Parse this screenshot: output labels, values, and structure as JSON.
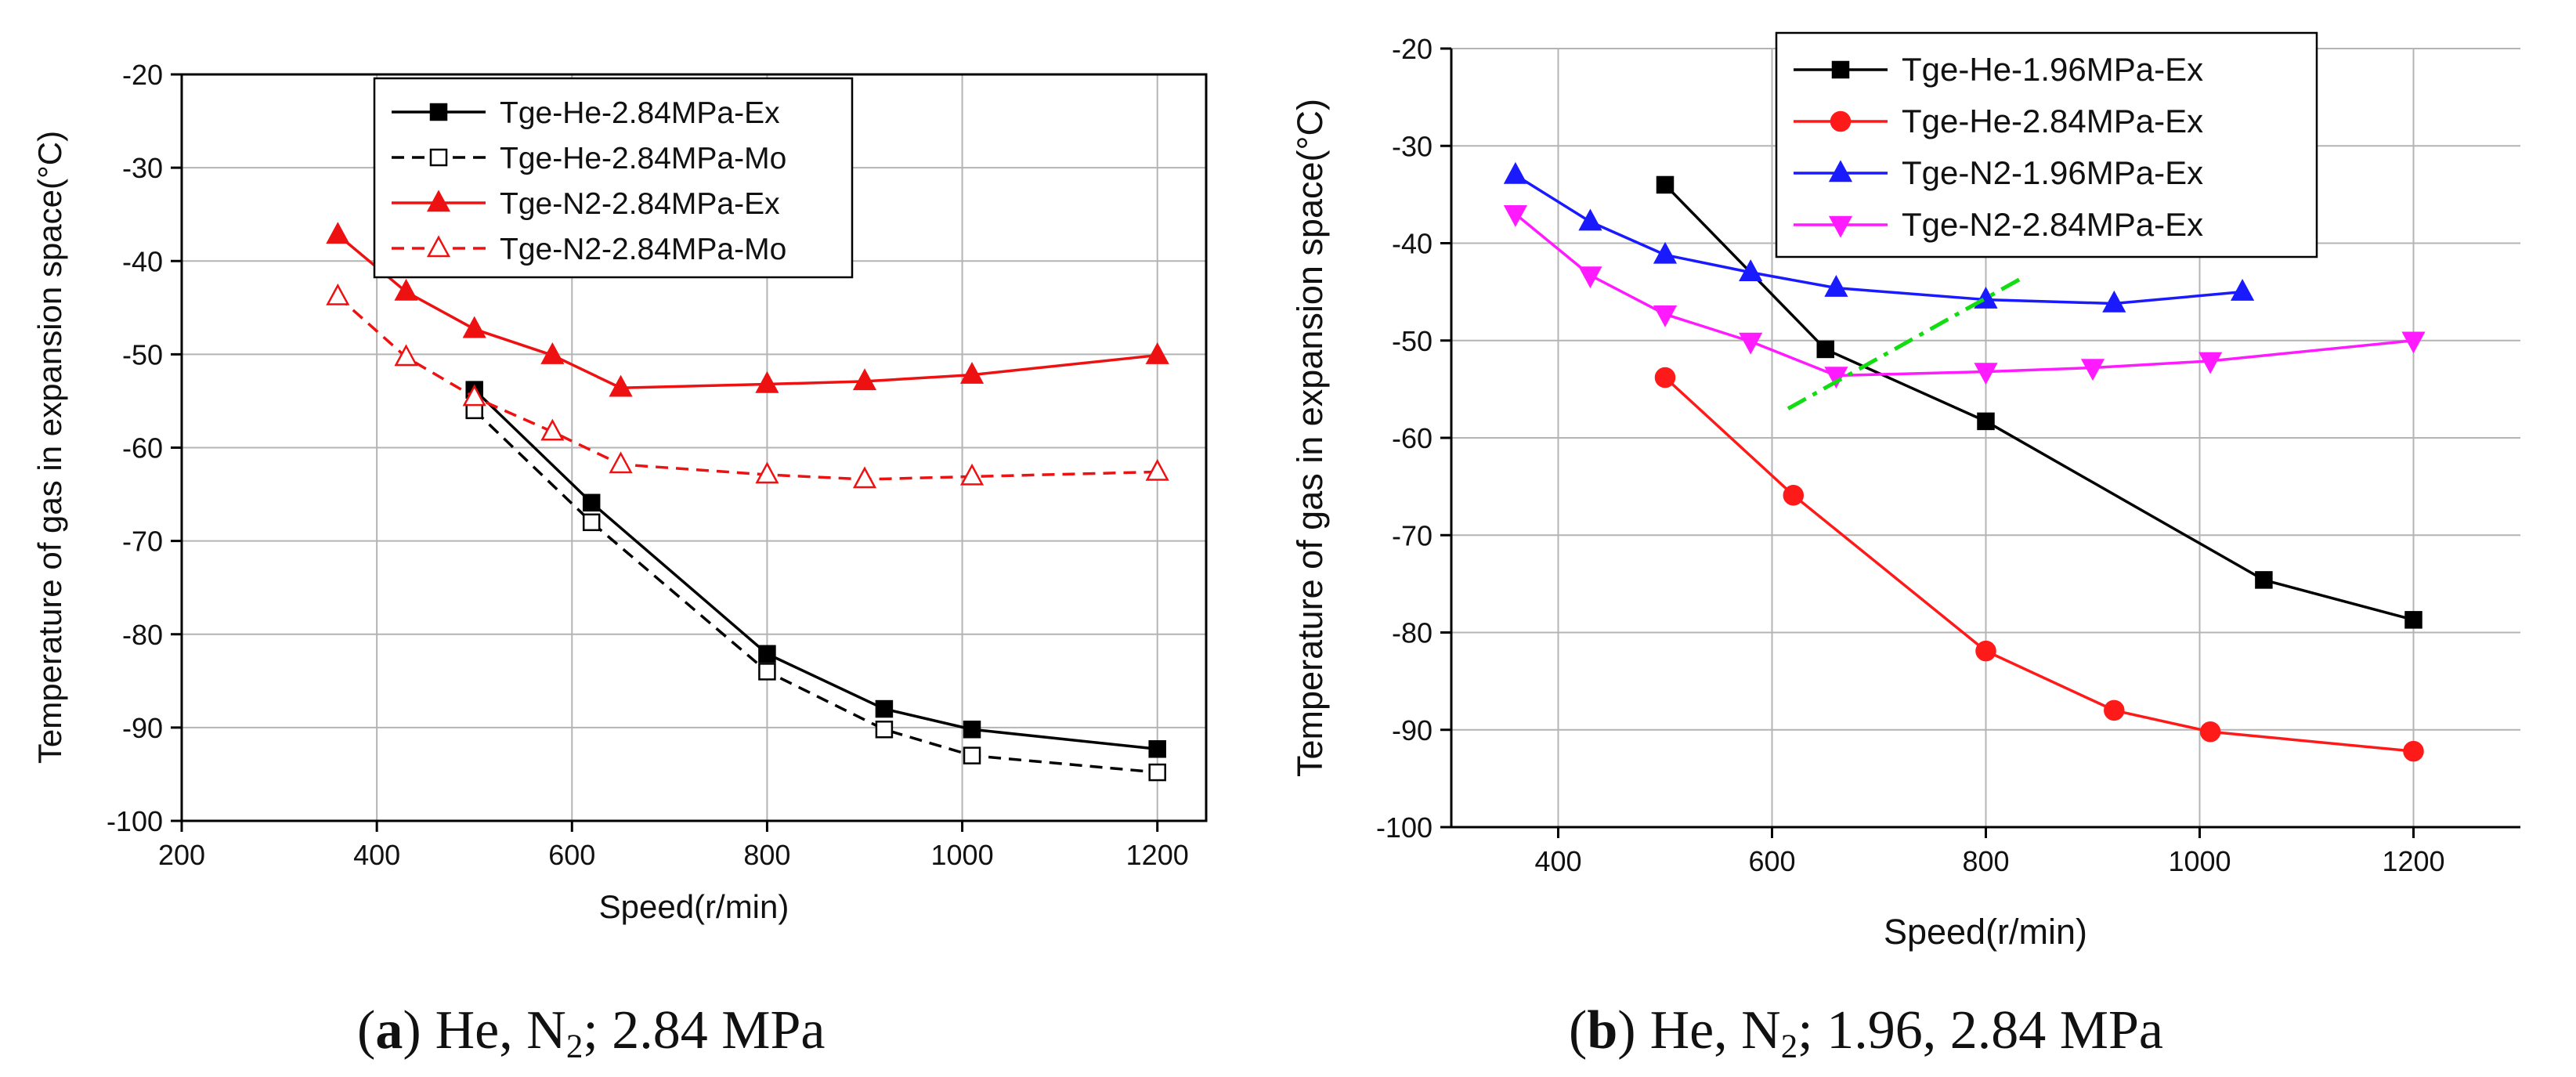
{
  "chart_data": [
    {
      "type": "line",
      "panel_label": "a",
      "caption": {
        "open": "(",
        "letter": "a",
        "close": ")",
        "prefix": "He, N",
        "sub": "2",
        "suffix": "; 2.84 MPa"
      },
      "xlabel": "Speed(r/min)",
      "ylabel": "Temperature of gas in expansion space(°C)",
      "xlim": [
        200,
        1250
      ],
      "ylim": [
        -100,
        -20
      ],
      "xticks": [
        200,
        400,
        600,
        800,
        1000,
        1200
      ],
      "yticks": [
        -100,
        -90,
        -80,
        -70,
        -60,
        -50,
        -40,
        -30,
        -20
      ],
      "grid": true,
      "legend_position": "top-center",
      "series": [
        {
          "name": "Tge-He-2.84MPa-Ex",
          "color": "#000000",
          "dash": "solid",
          "marker": "square",
          "filled": true,
          "x": [
            500,
            620,
            800,
            920,
            1010,
            1200
          ],
          "y": [
            -53.8,
            -65.9,
            -82.1,
            -88.0,
            -90.2,
            -92.3
          ]
        },
        {
          "name": "Tge-He-2.84MPa-Mo",
          "color": "#000000",
          "dash": "dashed",
          "marker": "square",
          "filled": false,
          "x": [
            500,
            620,
            800,
            920,
            1010,
            1200
          ],
          "y": [
            -56.0,
            -68.0,
            -84.0,
            -90.2,
            -93.0,
            -94.8
          ]
        },
        {
          "name": "Tge-N2-2.84MPa-Ex",
          "color": "#ee1111",
          "dash": "solid",
          "marker": "triangle-up",
          "filled": true,
          "x": [
            360,
            430,
            500,
            580,
            650,
            800,
            900,
            1010,
            1200
          ],
          "y": [
            -37.2,
            -43.3,
            -47.3,
            -50.1,
            -53.6,
            -53.2,
            -52.9,
            -52.2,
            -50.1
          ]
        },
        {
          "name": "Tge-N2-2.84MPa-Mo",
          "color": "#ee1111",
          "dash": "dashed",
          "marker": "triangle-up",
          "filled": false,
          "x": [
            360,
            430,
            500,
            580,
            650,
            800,
            900,
            1010,
            1200
          ],
          "y": [
            -43.8,
            -50.3,
            -54.6,
            -58.3,
            -61.8,
            -62.9,
            -63.4,
            -63.1,
            -62.6
          ]
        }
      ]
    },
    {
      "type": "line",
      "panel_label": "b",
      "caption": {
        "open": "(",
        "letter": "b",
        "close": ")",
        "prefix": "He, N",
        "sub": "2",
        "suffix": "; 1.96, 2.84 MPa"
      },
      "xlabel": "Speed(r/min)",
      "ylabel": "Temperature of gas in expansion space(°C)",
      "xlim": [
        300,
        1300
      ],
      "ylim": [
        -100,
        -20
      ],
      "xticks": [
        400,
        600,
        800,
        1000,
        1200
      ],
      "yticks": [
        -100,
        -90,
        -80,
        -70,
        -60,
        -50,
        -40,
        -30,
        -20
      ],
      "grid": true,
      "legend_position": "top-center",
      "series": [
        {
          "name": "Tge-He-1.96MPa-Ex",
          "color": "#000000",
          "dash": "solid",
          "marker": "square",
          "filled": true,
          "x": [
            500,
            650,
            800,
            1060,
            1200
          ],
          "y": [
            -34.0,
            -50.9,
            -58.3,
            -74.6,
            -78.7
          ]
        },
        {
          "name": "Tge-He-2.84MPa-Ex",
          "color": "#ff1a1a",
          "dash": "solid",
          "marker": "circle",
          "filled": true,
          "x": [
            500,
            620,
            800,
            920,
            1010,
            1200
          ],
          "y": [
            -53.8,
            -65.9,
            -81.9,
            -88.0,
            -90.2,
            -92.2
          ]
        },
        {
          "name": "Tge-N2-1.96MPa-Ex",
          "color": "#1a1aff",
          "dash": "solid",
          "marker": "triangle-up",
          "filled": true,
          "x": [
            360,
            430,
            500,
            580,
            660,
            800,
            920,
            1040
          ],
          "y": [
            -33.0,
            -37.8,
            -41.2,
            -43.0,
            -44.6,
            -45.8,
            -46.2,
            -45.0
          ]
        },
        {
          "name": "Tge-N2-2.84MPa-Ex",
          "color": "#ff1aff",
          "dash": "solid",
          "marker": "triangle-down",
          "filled": true,
          "x": [
            360,
            430,
            500,
            580,
            660,
            800,
            900,
            1010,
            1200
          ],
          "y": [
            -37.0,
            -43.3,
            -47.3,
            -50.1,
            -53.6,
            -53.2,
            -52.8,
            -52.1,
            -50.0
          ]
        }
      ],
      "annotations": [
        {
          "type": "dash-dot-line",
          "color": "#11dd11",
          "x": [
            615,
            835
          ],
          "y": [
            -57.0,
            -43.5
          ]
        }
      ]
    }
  ]
}
